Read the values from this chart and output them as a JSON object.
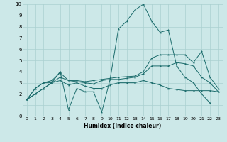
{
  "title": "",
  "xlabel": "Humidex (Indice chaleur)",
  "background_color": "#cce8e8",
  "grid_color": "#aad0d0",
  "line_color": "#1a6b6b",
  "xlim": [
    -0.5,
    23.5
  ],
  "ylim": [
    0,
    10
  ],
  "xticks": [
    0,
    1,
    2,
    3,
    4,
    5,
    6,
    7,
    8,
    9,
    10,
    11,
    12,
    13,
    14,
    15,
    16,
    17,
    18,
    19,
    20,
    21,
    22,
    23
  ],
  "yticks": [
    0,
    1,
    2,
    3,
    4,
    5,
    6,
    7,
    8,
    9,
    10
  ],
  "series": [
    [
      1.5,
      2.5,
      3.0,
      3.0,
      4.0,
      0.6,
      2.5,
      2.2,
      2.2,
      0.4,
      3.3,
      7.8,
      8.5,
      9.5,
      10.0,
      8.5,
      7.5,
      7.7,
      4.5,
      3.5,
      3.0,
      2.0,
      1.2,
      null
    ],
    [
      1.5,
      2.5,
      3.0,
      3.2,
      3.9,
      3.2,
      3.2,
      3.1,
      3.2,
      3.3,
      3.4,
      3.5,
      3.55,
      3.6,
      4.0,
      5.2,
      5.5,
      5.5,
      5.5,
      5.5,
      4.8,
      5.8,
      3.5,
      2.5
    ],
    [
      1.5,
      2.0,
      2.5,
      3.0,
      3.5,
      3.2,
      3.1,
      3.0,
      2.9,
      3.2,
      3.3,
      3.3,
      3.4,
      3.5,
      3.8,
      4.5,
      4.5,
      4.5,
      4.8,
      4.7,
      4.5,
      3.5,
      3.0,
      2.2
    ],
    [
      1.5,
      2.0,
      2.5,
      3.0,
      3.2,
      2.8,
      3.0,
      2.7,
      2.5,
      2.5,
      2.8,
      3.0,
      3.0,
      3.0,
      3.2,
      3.0,
      2.8,
      2.5,
      2.4,
      2.3,
      2.3,
      2.3,
      2.3,
      2.2
    ]
  ]
}
